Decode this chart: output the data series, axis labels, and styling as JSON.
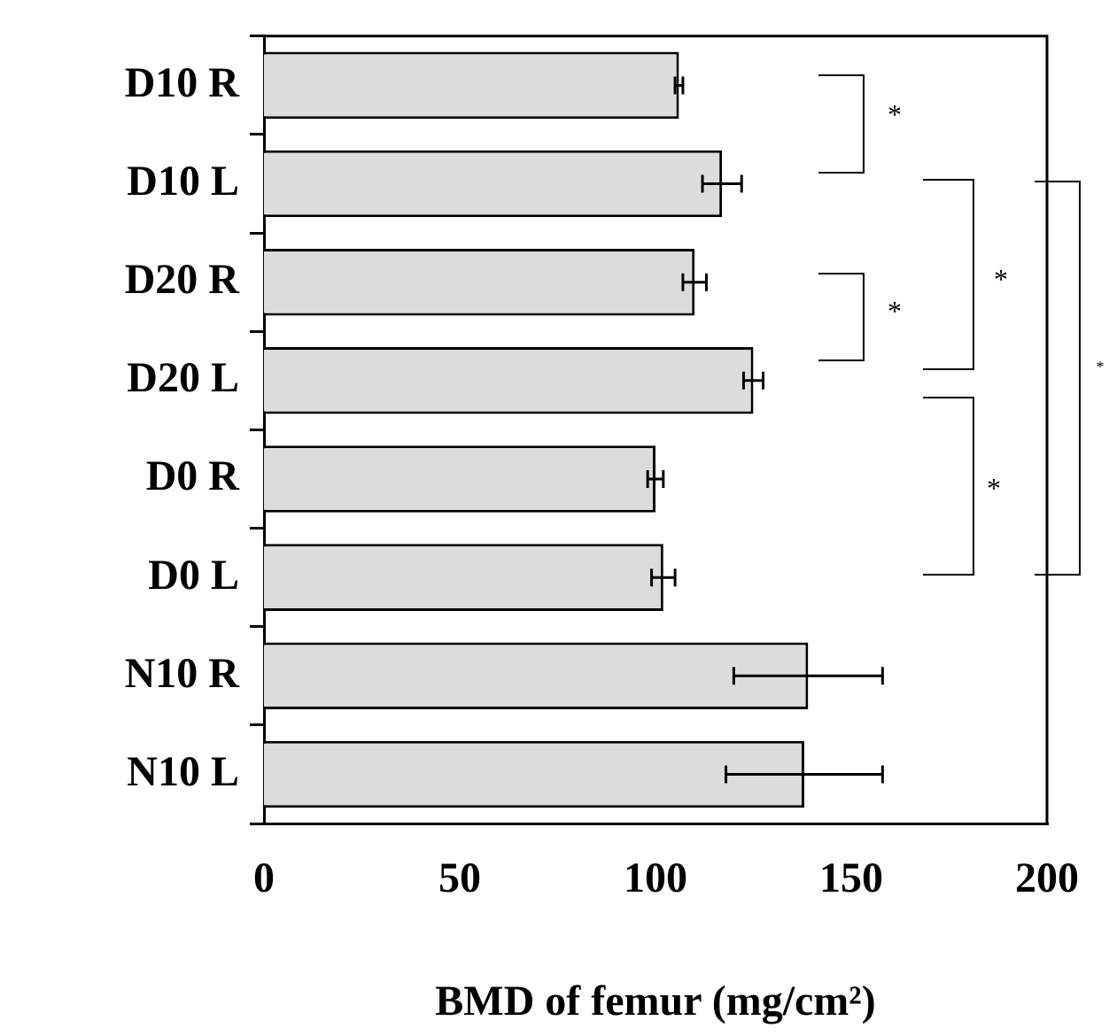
{
  "chart_data": {
    "type": "bar",
    "orientation": "horizontal",
    "xlabel": "BMD of femur (mg/cm²)",
    "categories": [
      "D10 R",
      "D10 L",
      "D20 R",
      "D20 L",
      "D0 R",
      "D0 L",
      "N10 R",
      "N10 L"
    ],
    "values": [
      106,
      117,
      110,
      125,
      100,
      102,
      139,
      138
    ],
    "errors": [
      1,
      5,
      3,
      2.5,
      2,
      3,
      19,
      20
    ],
    "color": "#dcdcdc",
    "xlim": [
      0,
      200
    ],
    "xticks": [
      0,
      50,
      100,
      150,
      200
    ],
    "grid": false,
    "legend": false,
    "annotations": [
      "*",
      "*",
      "*",
      "*",
      "*"
    ]
  }
}
